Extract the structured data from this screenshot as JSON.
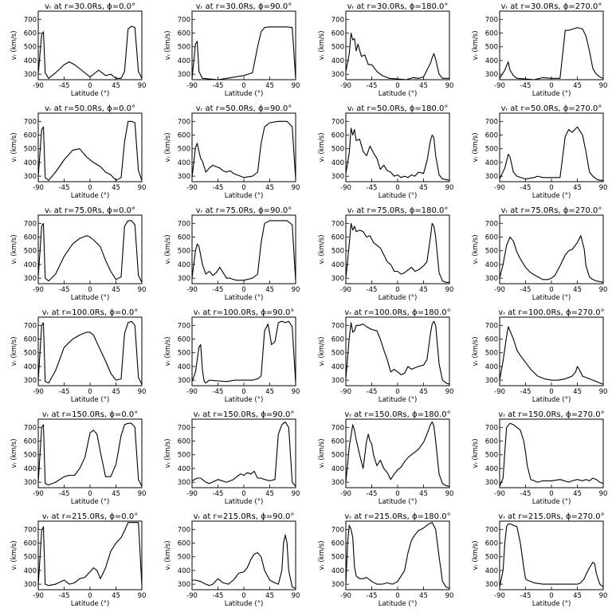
{
  "figure": {
    "xlabel": "Latitude (°)",
    "ylabel": "vᵣ (km/s)",
    "xticks": [
      -90,
      -45,
      0,
      45,
      90
    ],
    "yticks": [
      300,
      400,
      500,
      600,
      700
    ],
    "xlim": [
      -90,
      90
    ],
    "ylim": [
      260,
      760
    ]
  },
  "chart_data": [
    {
      "type": "line",
      "title": "vᵣ at r=30.0Rs, ϕ=0.0°",
      "x": [
        -90,
        -84,
        -81,
        -78,
        -72,
        -60,
        -45,
        -36,
        -27,
        -15,
        0,
        15,
        27,
        36,
        45,
        54,
        60,
        66,
        72,
        78,
        84,
        90
      ],
      "y": [
        300,
        590,
        610,
        310,
        270,
        310,
        370,
        390,
        370,
        330,
        280,
        330,
        290,
        300,
        270,
        270,
        320,
        630,
        650,
        640,
        320,
        270
      ]
    },
    {
      "type": "line",
      "title": "vᵣ at r=30.0Rs, ϕ=90.0°",
      "x": [
        -90,
        -84,
        -81,
        -78,
        -72,
        -60,
        -45,
        -30,
        -15,
        0,
        15,
        24,
        30,
        36,
        45,
        60,
        75,
        84,
        90
      ],
      "y": [
        270,
        520,
        540,
        320,
        270,
        265,
        260,
        270,
        280,
        290,
        310,
        500,
        610,
        640,
        645,
        645,
        645,
        640,
        270
      ]
    },
    {
      "type": "line",
      "title": "vᵣ at r=30.0Rs, ϕ=180.0°",
      "x": [
        -90,
        -84,
        -81,
        -78,
        -75,
        -72,
        -69,
        -63,
        -57,
        -51,
        -45,
        -36,
        -27,
        -15,
        0,
        15,
        27,
        36,
        45,
        51,
        57,
        60,
        63,
        66,
        72,
        78,
        84,
        90
      ],
      "y": [
        320,
        450,
        600,
        550,
        560,
        470,
        520,
        430,
        440,
        370,
        370,
        320,
        290,
        270,
        265,
        260,
        275,
        270,
        280,
        330,
        380,
        420,
        450,
        410,
        300,
        270,
        270,
        270
      ]
    },
    {
      "type": "line",
      "title": "vᵣ at r=30.0Rs, ϕ=270.0°",
      "x": [
        -90,
        -81,
        -75,
        -72,
        -66,
        -60,
        -45,
        -30,
        -15,
        0,
        15,
        24,
        30,
        45,
        54,
        60,
        66,
        72,
        78,
        84,
        90
      ],
      "y": [
        270,
        330,
        390,
        330,
        290,
        270,
        265,
        260,
        275,
        270,
        270,
        620,
        620,
        640,
        630,
        580,
        470,
        340,
        300,
        280,
        270
      ]
    },
    {
      "type": "line",
      "title": "vᵣ at r=50.0Rs, ϕ=0.0°",
      "x": [
        -90,
        -84,
        -81,
        -78,
        -72,
        -60,
        -45,
        -30,
        -18,
        -6,
        6,
        18,
        27,
        36,
        45,
        54,
        60,
        66,
        72,
        78,
        84,
        90
      ],
      "y": [
        300,
        640,
        660,
        290,
        270,
        330,
        420,
        490,
        500,
        440,
        400,
        370,
        330,
        310,
        270,
        290,
        550,
        700,
        700,
        690,
        340,
        270
      ]
    },
    {
      "type": "line",
      "title": "vᵣ at r=50.0Rs, ϕ=90.0°",
      "x": [
        -90,
        -84,
        -81,
        -78,
        -75,
        -72,
        -66,
        -60,
        -54,
        -48,
        -42,
        -36,
        -30,
        -24,
        -18,
        -12,
        0,
        15,
        24,
        30,
        36,
        45,
        60,
        75,
        84,
        90
      ],
      "y": [
        290,
        510,
        540,
        480,
        430,
        410,
        330,
        360,
        380,
        370,
        360,
        340,
        330,
        340,
        320,
        310,
        290,
        300,
        330,
        540,
        660,
        690,
        700,
        700,
        660,
        280
      ]
    },
    {
      "type": "line",
      "title": "vᵣ at r=50.0Rs, ϕ=180.0°",
      "x": [
        -90,
        -84,
        -81,
        -78,
        -75,
        -72,
        -66,
        -60,
        -54,
        -48,
        -42,
        -36,
        -30,
        -24,
        -18,
        -12,
        -6,
        0,
        6,
        12,
        18,
        24,
        30,
        36,
        45,
        51,
        57,
        60,
        63,
        66,
        72,
        78,
        84,
        90
      ],
      "y": [
        320,
        470,
        650,
        600,
        640,
        560,
        570,
        480,
        450,
        520,
        470,
        430,
        350,
        380,
        340,
        330,
        300,
        310,
        290,
        300,
        290,
        310,
        300,
        330,
        320,
        410,
        560,
        600,
        580,
        450,
        310,
        280,
        275,
        270
      ]
    },
    {
      "type": "line",
      "title": "vᵣ at r=50.0Rs, ϕ=270.0°",
      "x": [
        -90,
        -81,
        -75,
        -72,
        -66,
        -60,
        -45,
        -30,
        -24,
        -15,
        0,
        15,
        24,
        30,
        36,
        45,
        54,
        60,
        66,
        72,
        78,
        84,
        90
      ],
      "y": [
        280,
        360,
        460,
        440,
        330,
        300,
        280,
        290,
        300,
        290,
        290,
        290,
        590,
        640,
        620,
        660,
        600,
        480,
        330,
        300,
        280,
        270,
        270
      ]
    },
    {
      "type": "line",
      "title": "vᵣ at r=75.0Rs, ϕ=0.0°",
      "x": [
        -90,
        -84,
        -81,
        -78,
        -72,
        -60,
        -45,
        -30,
        -18,
        -6,
        0,
        6,
        18,
        27,
        36,
        45,
        54,
        60,
        66,
        72,
        78,
        84,
        90
      ],
      "y": [
        310,
        680,
        700,
        300,
        280,
        330,
        460,
        550,
        590,
        610,
        600,
        580,
        530,
        430,
        350,
        290,
        310,
        680,
        720,
        720,
        690,
        320,
        270
      ]
    },
    {
      "type": "line",
      "title": "vᵣ at r=75.0Rs, ϕ=90.0°",
      "x": [
        -90,
        -84,
        -81,
        -78,
        -75,
        -72,
        -66,
        -60,
        -54,
        -48,
        -42,
        -36,
        -30,
        -24,
        -18,
        -12,
        0,
        15,
        24,
        30,
        36,
        45,
        60,
        75,
        84,
        90
      ],
      "y": [
        300,
        500,
        550,
        530,
        470,
        400,
        330,
        350,
        320,
        340,
        380,
        340,
        300,
        300,
        290,
        285,
        285,
        300,
        330,
        560,
        700,
        720,
        720,
        720,
        690,
        280
      ]
    },
    {
      "type": "line",
      "title": "vᵣ at r=75.0Rs, ϕ=180.0°",
      "x": [
        -90,
        -84,
        -81,
        -78,
        -75,
        -72,
        -66,
        -60,
        -54,
        -48,
        -42,
        -36,
        -30,
        -24,
        -18,
        -12,
        -6,
        0,
        6,
        12,
        18,
        24,
        30,
        36,
        45,
        51,
        57,
        60,
        63,
        66,
        72,
        78,
        84,
        90
      ],
      "y": [
        300,
        550,
        700,
        650,
        680,
        640,
        650,
        640,
        600,
        610,
        560,
        540,
        520,
        470,
        420,
        400,
        350,
        350,
        330,
        340,
        360,
        380,
        350,
        360,
        390,
        420,
        600,
        700,
        680,
        600,
        340,
        280,
        270,
        270
      ]
    },
    {
      "type": "line",
      "title": "vᵣ at r=75.0Rs, ϕ=270.0°",
      "x": [
        -90,
        -84,
        -78,
        -72,
        -66,
        -60,
        -54,
        -45,
        -36,
        -24,
        -15,
        -6,
        0,
        6,
        15,
        24,
        30,
        36,
        45,
        51,
        57,
        60,
        66,
        72,
        78,
        84,
        90
      ],
      "y": [
        300,
        400,
        540,
        600,
        570,
        490,
        440,
        380,
        340,
        310,
        290,
        290,
        300,
        320,
        390,
        470,
        500,
        510,
        560,
        610,
        510,
        390,
        310,
        290,
        280,
        275,
        270
      ]
    },
    {
      "type": "line",
      "title": "vᵣ at r=100.0Rs, ϕ=0.0°",
      "x": [
        -90,
        -84,
        -81,
        -78,
        -72,
        -60,
        -45,
        -30,
        -18,
        -6,
        0,
        6,
        18,
        27,
        36,
        45,
        54,
        60,
        66,
        72,
        78,
        84,
        90
      ],
      "y": [
        300,
        700,
        720,
        290,
        280,
        370,
        540,
        600,
        630,
        650,
        650,
        630,
        520,
        440,
        350,
        300,
        310,
        640,
        720,
        730,
        700,
        320,
        270
      ]
    },
    {
      "type": "line",
      "title": "vᵣ at r=100.0Rs, ϕ=90.0°",
      "x": [
        -90,
        -84,
        -78,
        -75,
        -72,
        -69,
        -66,
        -60,
        -45,
        -30,
        -15,
        0,
        15,
        24,
        30,
        36,
        42,
        45,
        48,
        54,
        60,
        66,
        72,
        78,
        84,
        90
      ],
      "y": [
        290,
        360,
        540,
        560,
        380,
        290,
        280,
        300,
        295,
        290,
        300,
        300,
        300,
        310,
        330,
        660,
        710,
        640,
        560,
        580,
        720,
        730,
        720,
        730,
        690,
        280
      ]
    },
    {
      "type": "line",
      "title": "vᵣ at r=100.0Rs, ϕ=180.0°",
      "x": [
        -90,
        -84,
        -81,
        -78,
        -75,
        -72,
        -66,
        -60,
        -54,
        -45,
        -36,
        -30,
        -24,
        -18,
        -12,
        -6,
        0,
        6,
        12,
        18,
        24,
        30,
        36,
        45,
        51,
        57,
        60,
        63,
        66,
        72,
        78,
        84,
        90
      ],
      "y": [
        310,
        610,
        720,
        650,
        660,
        700,
        700,
        710,
        690,
        670,
        660,
        600,
        520,
        450,
        360,
        380,
        360,
        340,
        350,
        400,
        380,
        390,
        400,
        410,
        450,
        640,
        710,
        730,
        700,
        420,
        300,
        280,
        270
      ]
    },
    {
      "type": "line",
      "title": "vᵣ at r=100.0Rs, ϕ=270.0°",
      "x": [
        -90,
        -84,
        -78,
        -75,
        -72,
        -66,
        -60,
        -54,
        -45,
        -36,
        -24,
        -12,
        0,
        12,
        24,
        30,
        36,
        42,
        45,
        48,
        54,
        60,
        66,
        72,
        78,
        84,
        90
      ],
      "y": [
        300,
        440,
        620,
        690,
        660,
        600,
        520,
        480,
        430,
        380,
        330,
        310,
        300,
        300,
        310,
        320,
        330,
        360,
        400,
        380,
        330,
        320,
        310,
        300,
        290,
        280,
        270
      ]
    },
    {
      "type": "line",
      "title": "vᵣ at r=150.0Rs, ϕ=0.0°",
      "x": [
        -90,
        -84,
        -81,
        -78,
        -72,
        -60,
        -45,
        -36,
        -27,
        -18,
        -9,
        0,
        6,
        12,
        18,
        27,
        36,
        45,
        54,
        60,
        66,
        72,
        78,
        84,
        90
      ],
      "y": [
        300,
        700,
        720,
        290,
        280,
        300,
        340,
        350,
        350,
        400,
        480,
        660,
        680,
        650,
        520,
        340,
        340,
        430,
        640,
        720,
        730,
        730,
        700,
        320,
        270
      ]
    },
    {
      "type": "line",
      "title": "vᵣ at r=150.0Rs, ϕ=90.0°",
      "x": [
        -90,
        -81,
        -75,
        -66,
        -60,
        -45,
        -30,
        -18,
        -12,
        -6,
        0,
        6,
        12,
        18,
        24,
        30,
        36,
        45,
        54,
        60,
        66,
        72,
        78,
        84,
        90
      ],
      "y": [
        310,
        330,
        330,
        300,
        290,
        320,
        300,
        320,
        340,
        360,
        350,
        370,
        360,
        380,
        330,
        330,
        320,
        310,
        320,
        650,
        720,
        740,
        700,
        300,
        270
      ]
    },
    {
      "type": "line",
      "title": "vᵣ at r=150.0Rs, ϕ=180.0°",
      "x": [
        -90,
        -84,
        -81,
        -78,
        -75,
        -72,
        -66,
        -60,
        -54,
        -51,
        -48,
        -45,
        -42,
        -36,
        -30,
        -24,
        -18,
        -12,
        -6,
        0,
        6,
        12,
        18,
        24,
        30,
        36,
        45,
        51,
        57,
        60,
        63,
        66,
        72,
        78,
        84,
        90
      ],
      "y": [
        300,
        560,
        640,
        720,
        680,
        610,
        500,
        400,
        600,
        650,
        600,
        580,
        500,
        420,
        460,
        400,
        370,
        320,
        360,
        390,
        410,
        450,
        480,
        500,
        520,
        540,
        590,
        650,
        720,
        740,
        710,
        600,
        360,
        290,
        275,
        270
      ]
    },
    {
      "type": "line",
      "title": "vᵣ at r=150.0Rs, ϕ=270.0°",
      "x": [
        -90,
        -84,
        -81,
        -78,
        -72,
        -66,
        -60,
        -54,
        -48,
        -45,
        -42,
        -36,
        -30,
        -24,
        -15,
        0,
        15,
        30,
        36,
        45,
        54,
        60,
        66,
        72,
        78,
        84,
        90
      ],
      "y": [
        270,
        330,
        520,
        700,
        730,
        720,
        700,
        680,
        600,
        520,
        420,
        320,
        310,
        300,
        310,
        310,
        320,
        300,
        310,
        320,
        310,
        320,
        310,
        330,
        320,
        300,
        290
      ]
    },
    {
      "type": "line",
      "title": "vᵣ at r=215.0Rs, ϕ=0.0°",
      "x": [
        -90,
        -84,
        -81,
        -78,
        -72,
        -60,
        -45,
        -36,
        -27,
        -18,
        -9,
        0,
        6,
        12,
        18,
        27,
        36,
        45,
        54,
        60,
        66,
        72,
        78,
        84,
        90
      ],
      "y": [
        290,
        690,
        720,
        300,
        290,
        300,
        330,
        300,
        310,
        340,
        350,
        390,
        420,
        400,
        340,
        420,
        540,
        600,
        640,
        690,
        750,
        750,
        750,
        750,
        290
      ]
    },
    {
      "type": "line",
      "title": "vᵣ at r=215.0Rs, ϕ=90.0°",
      "x": [
        -90,
        -84,
        -75,
        -66,
        -60,
        -54,
        -45,
        -36,
        -27,
        -18,
        -9,
        0,
        6,
        12,
        18,
        24,
        30,
        36,
        45,
        54,
        60,
        66,
        69,
        72,
        75,
        78,
        84,
        90
      ],
      "y": [
        330,
        330,
        320,
        300,
        290,
        300,
        340,
        310,
        300,
        330,
        380,
        390,
        420,
        480,
        520,
        530,
        500,
        400,
        330,
        310,
        300,
        400,
        600,
        660,
        600,
        400,
        280,
        270
      ]
    },
    {
      "type": "line",
      "title": "vᵣ at r=215.0Rs, ϕ=180.0°",
      "x": [
        -90,
        -87,
        -84,
        -81,
        -78,
        -75,
        -72,
        -66,
        -60,
        -54,
        -45,
        -36,
        -27,
        -18,
        -9,
        0,
        6,
        12,
        18,
        24,
        30,
        36,
        45,
        54,
        60,
        66,
        72,
        78,
        84,
        90
      ],
      "y": [
        300,
        600,
        730,
        700,
        640,
        430,
        360,
        340,
        340,
        350,
        320,
        300,
        300,
        310,
        300,
        320,
        360,
        400,
        530,
        620,
        660,
        690,
        710,
        740,
        750,
        700,
        500,
        320,
        280,
        270
      ]
    },
    {
      "type": "line",
      "title": "vᵣ at r=215.0Rs, ϕ=270.0°",
      "x": [
        -90,
        -84,
        -81,
        -78,
        -75,
        -72,
        -66,
        -60,
        -54,
        -48,
        -45,
        -42,
        -36,
        -30,
        -15,
        0,
        15,
        30,
        45,
        51,
        57,
        60,
        66,
        72,
        75,
        78,
        84,
        90
      ],
      "y": [
        280,
        400,
        600,
        720,
        740,
        740,
        730,
        720,
        600,
        420,
        340,
        330,
        320,
        310,
        300,
        300,
        300,
        300,
        300,
        310,
        340,
        370,
        420,
        460,
        450,
        380,
        300,
        280
      ]
    }
  ]
}
